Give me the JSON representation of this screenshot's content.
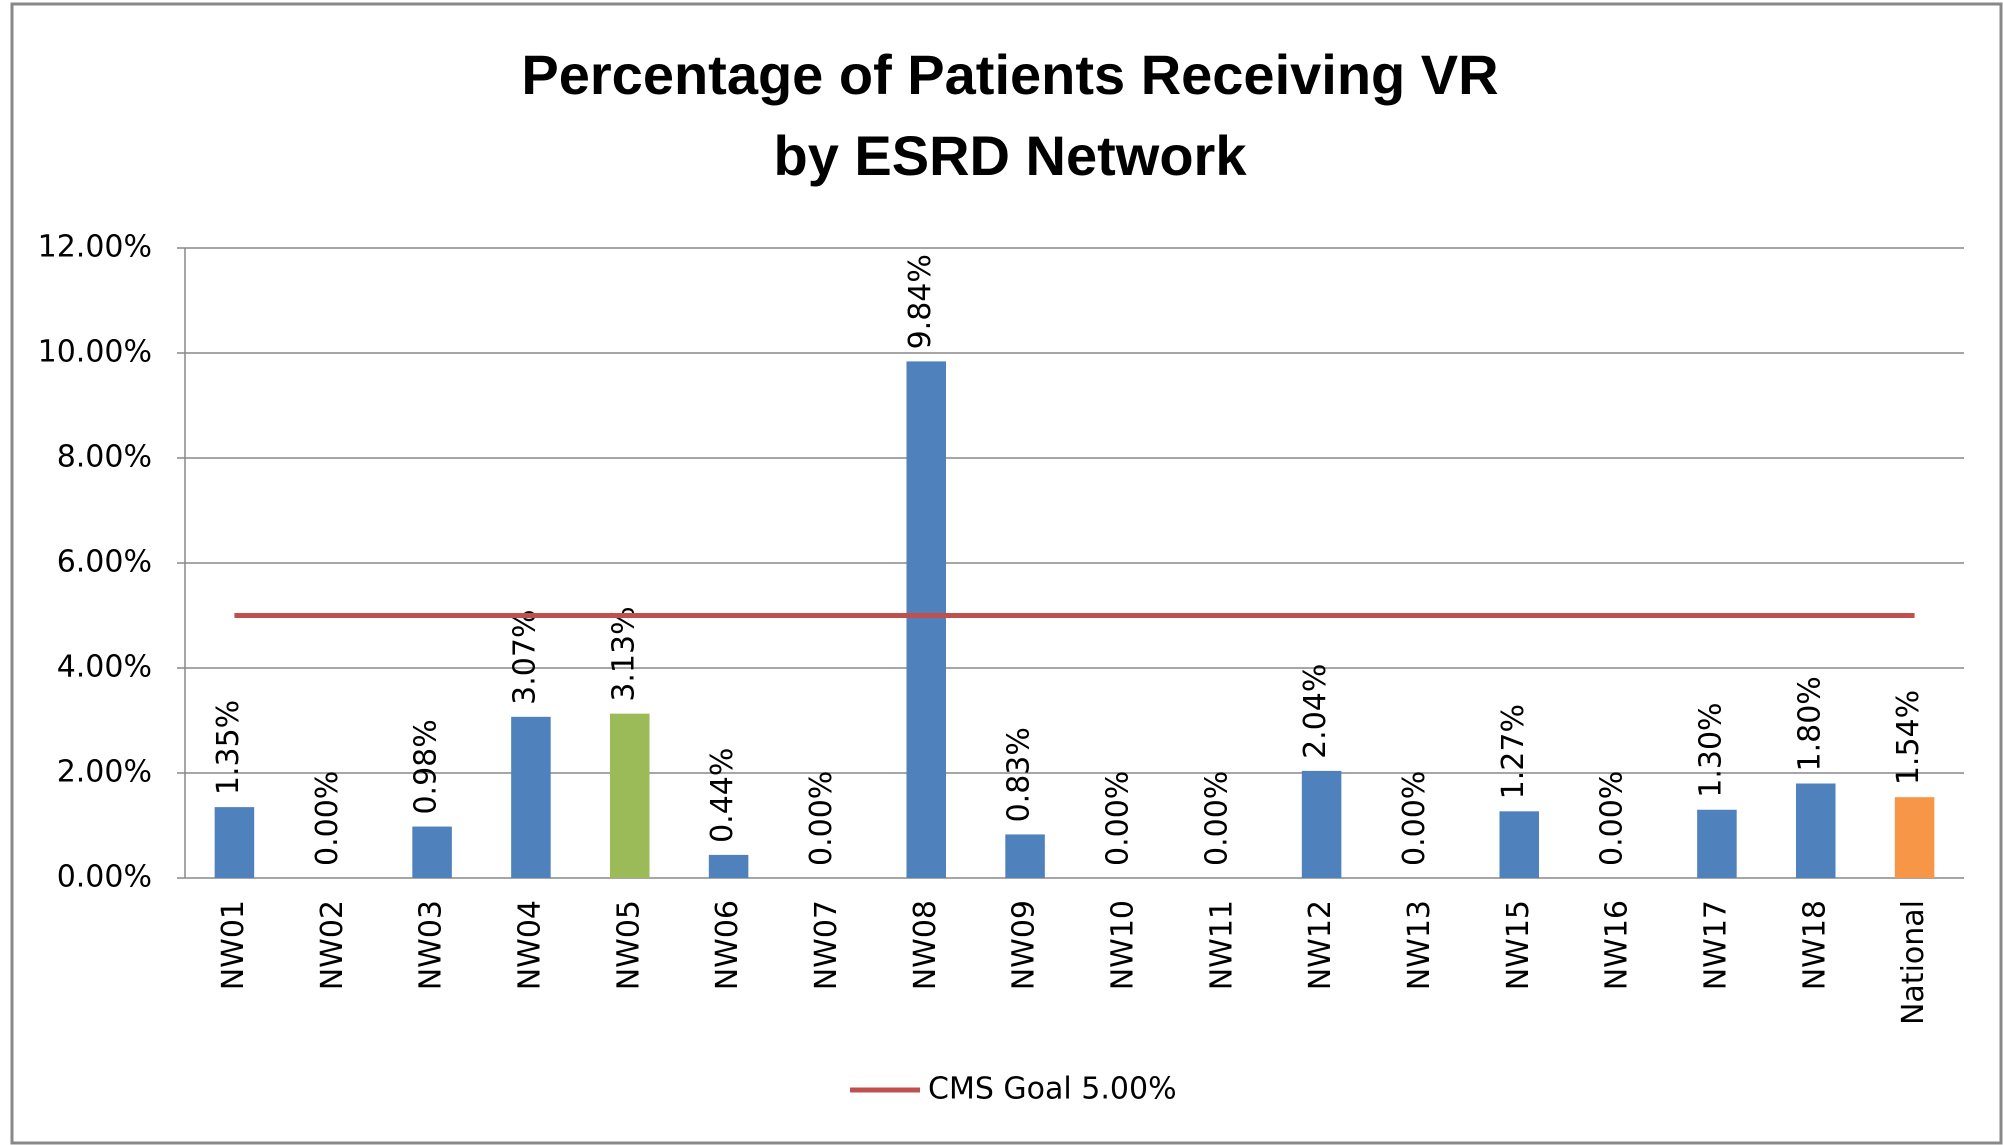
{
  "chart_data": {
    "type": "bar",
    "title": [
      "Percentage of Patients Receiving VR",
      "by ESRD Network"
    ],
    "categories": [
      "NW01",
      "NW02",
      "NW03",
      "NW04",
      "NW05",
      "NW06",
      "NW07",
      "NW08",
      "NW09",
      "NW10",
      "NW11",
      "NW12",
      "NW13",
      "NW15",
      "NW16",
      "NW17",
      "NW18",
      "National"
    ],
    "values": [
      1.35,
      0,
      0.98,
      3.07,
      3.13,
      0.44,
      0,
      9.84,
      0.83,
      0,
      0,
      2.04,
      0,
      1.27,
      0,
      1.3,
      1.8,
      1.54
    ],
    "value_labels": [
      "1.35%",
      "0.00%",
      "0.98%",
      "3.07%",
      "3.13%",
      "0.44%",
      "0.00%",
      "9.84%",
      "0.83%",
      "0.00%",
      "0.00%",
      "2.04%",
      "0.00%",
      "1.27%",
      "0.00%",
      "1.30%",
      "1.80%",
      "1.54%"
    ],
    "colors": [
      "#4f81bd",
      "#4f81bd",
      "#4f81bd",
      "#4f81bd",
      "#9bbb59",
      "#4f81bd",
      "#4f81bd",
      "#4f81bd",
      "#4f81bd",
      "#4f81bd",
      "#4f81bd",
      "#4f81bd",
      "#4f81bd",
      "#4f81bd",
      "#4f81bd",
      "#4f81bd",
      "#4f81bd",
      "#f79646"
    ],
    "series": [
      {
        "name": "CMS Goal 5.00%",
        "color": "#c0504d",
        "type": "line",
        "values": [
          5,
          5,
          5,
          5,
          5,
          5,
          5,
          5,
          5,
          5,
          5,
          5,
          5,
          5,
          5,
          5,
          5,
          5
        ]
      }
    ],
    "ylim": [
      0,
      12
    ],
    "yticks": [
      {
        "value": 0,
        "label": "0.00%"
      },
      {
        "value": 2,
        "label": "2.00%"
      },
      {
        "value": 4,
        "label": "4.00%"
      },
      {
        "value": 6,
        "label": "6.00%"
      },
      {
        "value": 8,
        "label": "8.00%"
      },
      {
        "value": 10,
        "label": "10.00%"
      },
      {
        "value": 12,
        "label": "12.00%"
      }
    ],
    "grid": true,
    "legend": "bottom"
  }
}
